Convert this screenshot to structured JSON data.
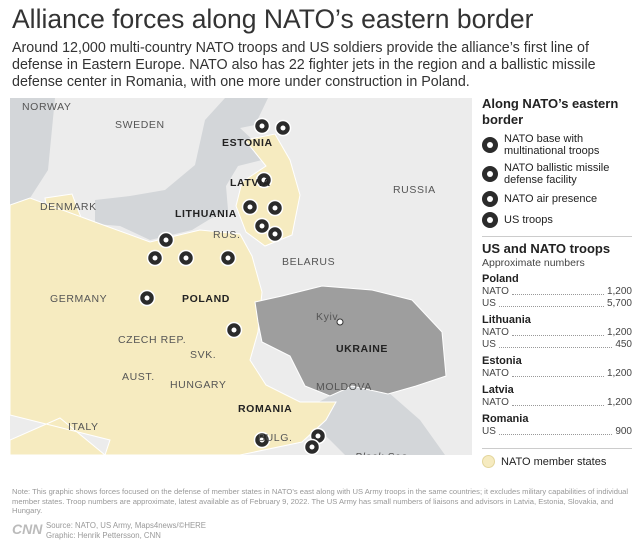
{
  "header": {
    "title": "Alliance forces along NATO’s eastern border",
    "subtitle": "Around 12,000 multi-country NATO troops and US soldiers provide the alliance’s first line of defense in Eastern Europe. NATO also has 22 fighter jets in the region and a ballistic missile defense center in Romania, with one more under construction in Poland."
  },
  "map": {
    "labels": [
      "NORWAY",
      "SWEDEN",
      "ESTONIA",
      "LATVIA",
      "LITHUANIA",
      "RUSSIA",
      "DENMARK",
      "RUS.",
      "BELARUS",
      "GERMANY",
      "POLAND",
      "Kyiv",
      "CZECH REP.",
      "UKRAINE",
      "SVK.",
      "AUST.",
      "HUNGARY",
      "MOLDOVA",
      "ROMANIA",
      "ITALY",
      "BULG.",
      "Black Sea"
    ]
  },
  "legend": {
    "title": "Along NATO’s eastern border",
    "items": [
      "NATO base with multinational troops",
      "NATO ballistic missile defense facility",
      "NATO air presence",
      "US troops"
    ],
    "member_states": "NATO member states"
  },
  "troops": {
    "title": "US and NATO troops",
    "subtitle": "Approximate numbers",
    "groups": [
      {
        "name": "Poland",
        "rows": [
          {
            "label": "NATO",
            "value": "1,200"
          },
          {
            "label": "US",
            "value": "5,700"
          }
        ]
      },
      {
        "name": "Lithuania",
        "rows": [
          {
            "label": "NATO",
            "value": "1,200"
          },
          {
            "label": "US",
            "value": "450"
          }
        ]
      },
      {
        "name": "Estonia",
        "rows": [
          {
            "label": "NATO",
            "value": "1,200"
          }
        ]
      },
      {
        "name": "Latvia",
        "rows": [
          {
            "label": "NATO",
            "value": "1,200"
          }
        ]
      },
      {
        "name": "Romania",
        "rows": [
          {
            "label": "US",
            "value": "900"
          }
        ]
      }
    ]
  },
  "footer": {
    "note": "Note: This graphic shows forces focused on the defense of member states in NATO’s east along with US Army troops in the same countries; it excludes military capabilities of individual member states. Troop numbers are approximate, latest available as of February 9, 2022. The US Army has small numbers of liaisons and advisors in Latvia, Estonia, Slovakia, and Hungary.",
    "logo": "CNN",
    "source": "Source: NATO, US Army, Maps4news/©HERE",
    "credit": "Graphic: Henrik Pettersson, CNN"
  }
}
